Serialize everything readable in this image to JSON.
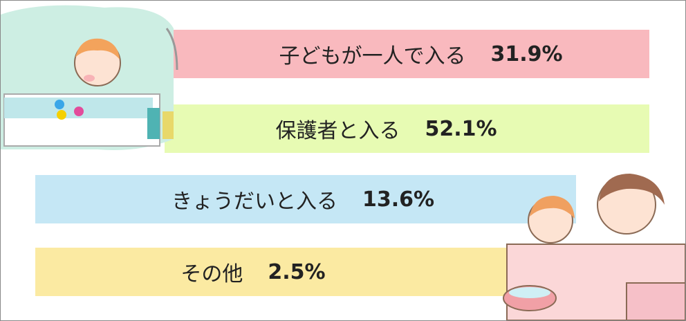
{
  "items": [
    {
      "label": "子どもが一人で入る",
      "value": "31.9%"
    },
    {
      "label": "保護者と入る",
      "value": "52.1%"
    },
    {
      "label": "きょうだいと入る",
      "value": "13.6%"
    },
    {
      "label": "その他",
      "value": "2.5%"
    }
  ]
}
